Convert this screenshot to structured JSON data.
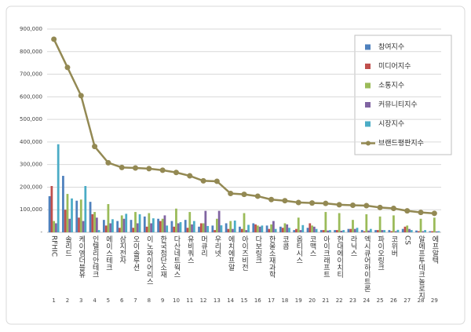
{
  "chart_data": {
    "type": "bar",
    "categories": [
      "RFHIC",
      "솔리드",
      "케이엠더블유",
      "인텔리안테크",
      "에이스테크",
      "삼지전자",
      "오이솔루션",
      "이노와이어리스",
      "한국첨단소재",
      "다산네트웍스",
      "유비쿼스",
      "머큐리",
      "우리넷",
      "에치에프알",
      "아이즈비전",
      "다보링크",
      "한울소재과학",
      "코콤",
      "옵티시스",
      "코맥스",
      "아이크래프트",
      "현대에이치티",
      "라닉스",
      "엑시큐어하이트론",
      "파이오링크",
      "코위버",
      "CS",
      "알에프투데크놀로지",
      "에프알텍"
    ],
    "ranks": [
      1,
      2,
      3,
      4,
      5,
      6,
      7,
      8,
      9,
      10,
      11,
      12,
      13,
      14,
      15,
      16,
      17,
      18,
      19,
      20,
      21,
      22,
      23,
      24,
      25,
      26,
      27,
      28,
      29
    ],
    "series": [
      {
        "name": "참여지수",
        "color": "#4f81bd",
        "values": [
          160000,
          250000,
          140000,
          135000,
          55000,
          50000,
          55000,
          70000,
          60000,
          50000,
          55000,
          25000,
          30000,
          40000,
          25000,
          40000,
          30000,
          25000,
          10000,
          20000,
          10000,
          10000,
          15000,
          10000,
          10000,
          10000,
          15000,
          8000,
          5000
        ]
      },
      {
        "name": "미디어지수",
        "color": "#c0504d",
        "values": [
          205000,
          100000,
          65000,
          80000,
          30000,
          20000,
          20000,
          25000,
          50000,
          25000,
          20000,
          40000,
          10000,
          15000,
          15000,
          35000,
          15000,
          20000,
          15000,
          40000,
          10000,
          10000,
          15000,
          5000,
          10000,
          5000,
          25000,
          5000,
          5000
        ]
      },
      {
        "name": "소통지수",
        "color": "#9bbb59",
        "values": [
          50000,
          170000,
          145000,
          90000,
          125000,
          75000,
          90000,
          85000,
          60000,
          105000,
          90000,
          40000,
          60000,
          50000,
          85000,
          30000,
          35000,
          40000,
          65000,
          30000,
          90000,
          85000,
          55000,
          80000,
          70000,
          75000,
          30000,
          60000,
          65000
        ]
      },
      {
        "name": "커뮤니티지수",
        "color": "#8064a2",
        "values": [
          40000,
          60000,
          50000,
          65000,
          40000,
          60000,
          40000,
          40000,
          75000,
          40000,
          35000,
          95000,
          95000,
          15000,
          10000,
          25000,
          50000,
          35000,
          10000,
          25000,
          8000,
          7000,
          15000,
          8000,
          10000,
          5000,
          15000,
          5000,
          4000
        ]
      },
      {
        "name": "시장지수",
        "color": "#4bacc6",
        "values": [
          390000,
          150000,
          205000,
          10000,
          58000,
          82000,
          80000,
          62000,
          30000,
          45000,
          50000,
          28000,
          31000,
          52000,
          33000,
          30000,
          15000,
          20000,
          32000,
          15000,
          10000,
          10000,
          20000,
          15000,
          10000,
          11000,
          10000,
          10000,
          5000
        ]
      },
      {
        "name": "브랜드평판지수",
        "type": "line",
        "color": "#938953",
        "values": [
          855000,
          730000,
          605000,
          380000,
          308000,
          287000,
          285000,
          282000,
          275000,
          265000,
          250000,
          228000,
          226000,
          172000,
          168000,
          160000,
          145000,
          140000,
          132000,
          130000,
          128000,
          122000,
          120000,
          118000,
          110000,
          106000,
          95000,
          88000,
          84000
        ]
      }
    ],
    "ylim": [
      0,
      900000
    ],
    "yticks": [
      {
        "value": 0,
        "label": "-"
      },
      {
        "value": 100000,
        "label": "100,000"
      },
      {
        "value": 200000,
        "label": "200,000"
      },
      {
        "value": 300000,
        "label": "300,000"
      },
      {
        "value": 400000,
        "label": "400,000"
      },
      {
        "value": 500000,
        "label": "500,000"
      },
      {
        "value": 600000,
        "label": "600,000"
      },
      {
        "value": 700000,
        "label": "700,000"
      },
      {
        "value": 800000,
        "label": "800,000"
      },
      {
        "value": 900000,
        "label": "900,000"
      }
    ],
    "grid": true
  }
}
